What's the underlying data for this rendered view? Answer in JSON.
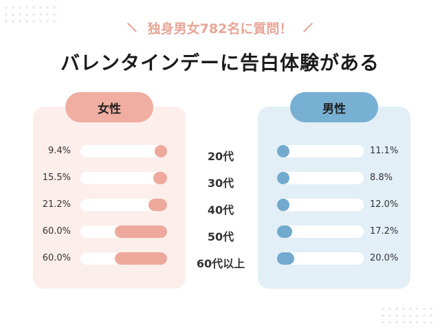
{
  "subtitle": "独身男女782名に質問！",
  "title": "バレンタインデーに告白体験がある",
  "chart_data": {
    "type": "bar",
    "title": "バレンタインデーに告白体験がある",
    "categories": [
      "20代",
      "30代",
      "40代",
      "50代",
      "60代以上"
    ],
    "xlim": [
      0,
      100
    ],
    "series": [
      {
        "name": "女性",
        "values": [
          9.4,
          15.5,
          21.2,
          60.0,
          60.0
        ],
        "labels": [
          "9.4%",
          "15.5%",
          "21.2%",
          "60.0%",
          "60.0%"
        ],
        "color": "#eda99c"
      },
      {
        "name": "男性",
        "values": [
          11.1,
          8.8,
          12.0,
          17.2,
          20.0
        ],
        "labels": [
          "11.1%",
          "8.8%",
          "12.0%",
          "17.2%",
          "20.0%"
        ],
        "color": "#72aacf"
      }
    ]
  }
}
